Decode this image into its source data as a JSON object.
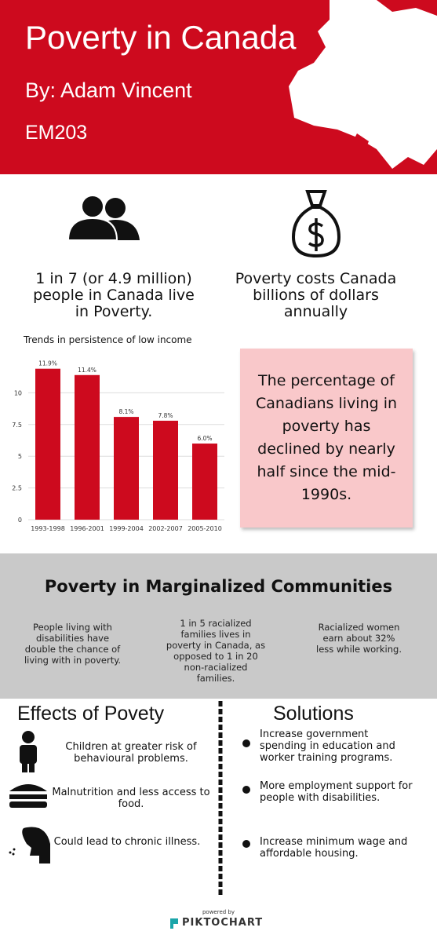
{
  "header": {
    "title": "Poverty in Canada",
    "author": "By: Adam Vincent",
    "course": "EM203"
  },
  "stats": [
    "1 in 7 (or 4.9 million) people in Canada live in Poverty.",
    "Poverty costs Canada billions of dollars annually"
  ],
  "chart_data": {
    "type": "bar",
    "title": "Trends in persistence of low income",
    "categories": [
      "1993-1998",
      "1996-2001",
      "1999-2004",
      "2002-2007",
      "2005-2010"
    ],
    "values": [
      11.9,
      11.4,
      8.1,
      7.8,
      6.0
    ],
    "value_labels": [
      "11.9%",
      "11.4%",
      "8.1%",
      "7.8%",
      "6.0%"
    ],
    "color": "#cd0a1e",
    "ylim": [
      0,
      12.5
    ],
    "yticks": [
      0,
      2.5,
      5,
      7.5,
      10
    ],
    "grid": true
  },
  "callout": "The percentage of Canadians living in poverty has declined by nearly half since the mid-1990s.",
  "marginalized": {
    "title": "Poverty in Marginalized Communities",
    "items": [
      "People living with disabilities have double the chance of living with in poverty.",
      "1 in 5 racialized families lives in poverty in Canada, as opposed to 1 in 20 non-racialized families.",
      "Racialized women earn about 32% less while working."
    ]
  },
  "effects": {
    "title": "Effects of Povety",
    "items": [
      "Children at greater risk of behavioural problems.",
      "Malnutrition and less access to food.",
      "Could lead to chronic illness."
    ]
  },
  "solutions": {
    "title": "Solutions",
    "items": [
      "Increase government spending in education and worker training programs.",
      "More employment support for people with disabilities.",
      "Increase minimum wage and affordable housing."
    ]
  },
  "footer": {
    "powered_by": "powered by",
    "brand": "PIKTOCHART"
  }
}
